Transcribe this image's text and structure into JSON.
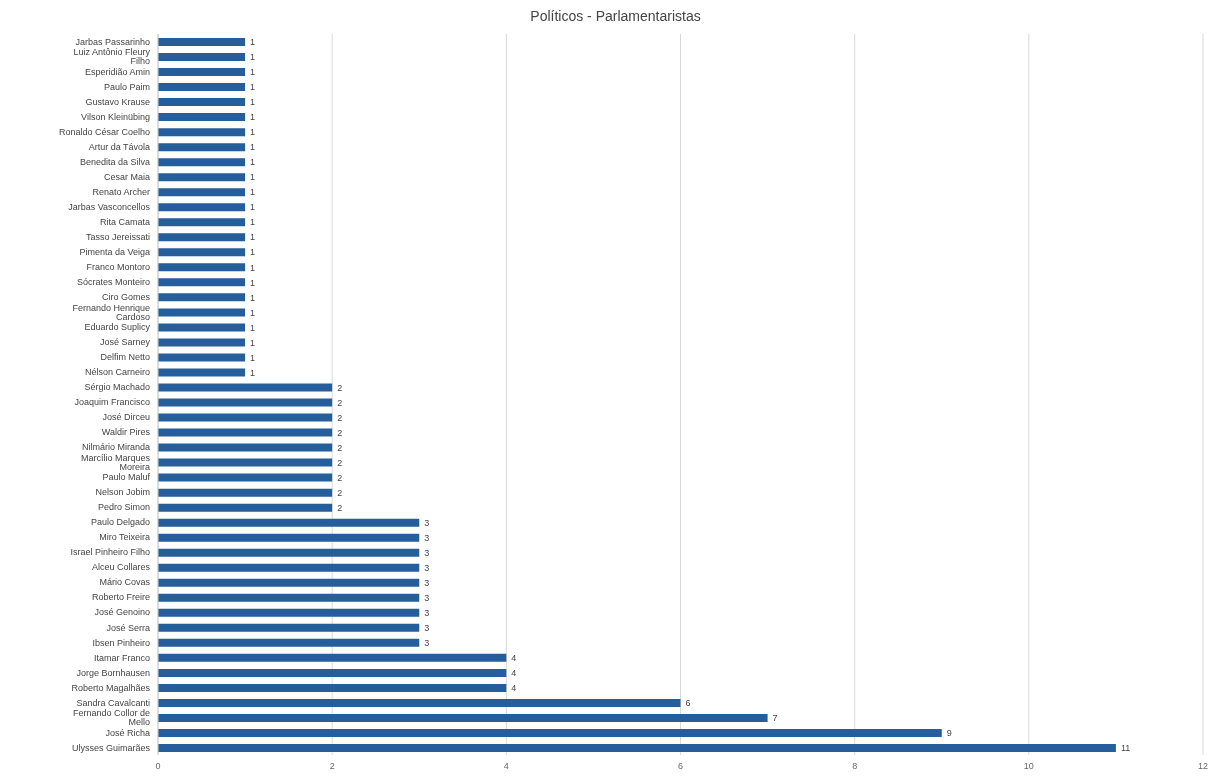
{
  "chart_data": {
    "type": "bar",
    "orientation": "horizontal",
    "title": "Políticos - Parlamentaristas",
    "categories": [
      "Jarbas Passarinho",
      "Luiz Antônio Fleury Filho",
      "Esperidião Amin",
      "Paulo Paim",
      "Gustavo Krause",
      "Vilson Kleinübing",
      "Ronaldo César Coelho",
      "Artur da Távola",
      "Benedita da Silva",
      "Cesar Maia",
      "Renato Archer",
      "Jarbas Vasconcellos",
      "Rita Camata",
      "Tasso Jereissati",
      "Pimenta da Veiga",
      "Franco Montoro",
      "Sócrates Monteiro",
      "Ciro Gomes",
      "Fernando Henrique Cardoso",
      "Eduardo Suplicy",
      "José Sarney",
      "Delfim Netto",
      "Nélson Carneiro",
      "Sérgio Machado",
      "Joaquim Francisco",
      "José Dirceu",
      "Waldir Pires",
      "Nilmário Miranda",
      "Marcílio Marques Moreira",
      "Paulo Maluf",
      "Nelson Jobim",
      "Pedro Simon",
      "Paulo Delgado",
      "Miro Teixeira",
      "Israel Pinheiro Filho",
      "Alceu Collares",
      "Mário Covas",
      "Roberto Freire",
      "José Genoino",
      "José Serra",
      "Ibsen Pinheiro",
      "Itamar Franco",
      "Jorge Bornhausen",
      "Roberto Magalhães",
      "Sandra Cavalcanti",
      "Fernando Collor de Mello",
      "José Richa",
      "Ulysses Guimarães"
    ],
    "values": [
      1,
      1,
      1,
      1,
      1,
      1,
      1,
      1,
      1,
      1,
      1,
      1,
      1,
      1,
      1,
      1,
      1,
      1,
      1,
      1,
      1,
      1,
      1,
      2,
      2,
      2,
      2,
      2,
      2,
      2,
      2,
      2,
      3,
      3,
      3,
      3,
      3,
      3,
      3,
      3,
      3,
      4,
      4,
      4,
      6,
      7,
      9,
      11
    ],
    "color": "#255e9b",
    "xlim": [
      0,
      12
    ],
    "xticks": [
      0,
      2,
      4,
      6,
      8,
      10,
      12
    ],
    "grid": "x",
    "data_labels": true
  }
}
